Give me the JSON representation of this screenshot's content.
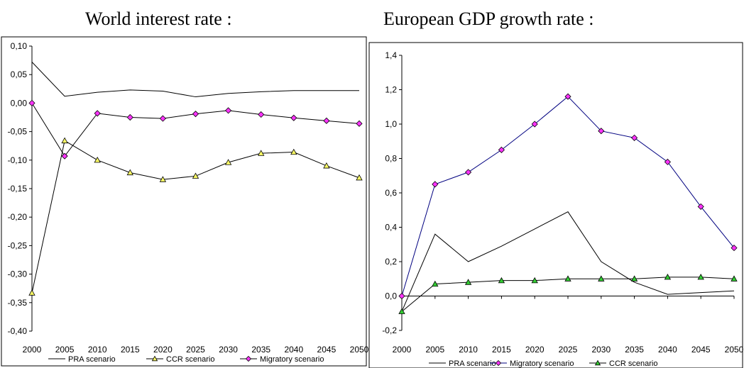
{
  "chart_data": [
    {
      "type": "line",
      "title": "World interest rate :",
      "x": [
        "2000",
        "2005",
        "2010",
        "2015",
        "2020",
        "2025",
        "2030",
        "2035",
        "2040",
        "2045",
        "2050"
      ],
      "ylim": [
        -0.4,
        0.1
      ],
      "yticks": [
        "0,10",
        "0,05",
        "0,00",
        "-0,05",
        "-0,10",
        "-0,15",
        "-0,20",
        "-0,25",
        "-0,30",
        "-0,35",
        "-0,40"
      ],
      "grid": false,
      "legend_placement": "bottom",
      "series": [
        {
          "name": "PRA scenario",
          "marker": "none",
          "color": "#000000",
          "values": [
            0.072,
            0.012,
            0.019,
            0.023,
            0.021,
            0.011,
            0.017,
            0.02,
            0.022,
            0.022,
            0.022
          ]
        },
        {
          "name": "CCR scenario",
          "marker": "triangle",
          "color": "#000000",
          "marker_color": "#ffff66",
          "values": [
            -0.333,
            -0.066,
            -0.1,
            -0.122,
            -0.134,
            -0.128,
            -0.104,
            -0.088,
            -0.086,
            -0.11,
            -0.131
          ]
        },
        {
          "name": "Migratory scenario",
          "marker": "diamond",
          "color": "#000000",
          "marker_color": "#ff33ff",
          "values": [
            0.0,
            -0.093,
            -0.018,
            -0.025,
            -0.027,
            -0.019,
            -0.013,
            -0.02,
            -0.026,
            -0.031,
            -0.036
          ]
        }
      ]
    },
    {
      "type": "line",
      "title": "European GDP growth rate :",
      "x": [
        "2000",
        "2005",
        "2010",
        "2015",
        "2020",
        "2025",
        "2030",
        "2035",
        "2040",
        "2045",
        "2050"
      ],
      "ylim": [
        -0.2,
        1.4
      ],
      "yticks": [
        "1,4",
        "1,2",
        "1,0",
        "0,8",
        "0,6",
        "0,4",
        "0,2",
        "0,0",
        "-0,2"
      ],
      "grid": false,
      "legend_placement": "bottom",
      "series": [
        {
          "name": "PRA scenario",
          "marker": "none",
          "color": "#000000",
          "values": [
            -0.09,
            0.36,
            0.2,
            0.29,
            0.39,
            0.49,
            0.2,
            0.08,
            0.01,
            0.02,
            0.03
          ]
        },
        {
          "name": "Migratory scenario",
          "marker": "diamond",
          "color": "#000080",
          "marker_color": "#ff33ff",
          "values": [
            0.0,
            0.65,
            0.72,
            0.85,
            1.0,
            1.16,
            0.96,
            0.92,
            0.78,
            0.52,
            0.28
          ]
        },
        {
          "name": "CCR scenario",
          "marker": "triangle",
          "color": "#000000",
          "marker_color": "#33cc33",
          "values": [
            -0.09,
            0.07,
            0.08,
            0.09,
            0.09,
            0.1,
            0.1,
            0.1,
            0.11,
            0.11,
            0.1
          ]
        }
      ]
    }
  ]
}
